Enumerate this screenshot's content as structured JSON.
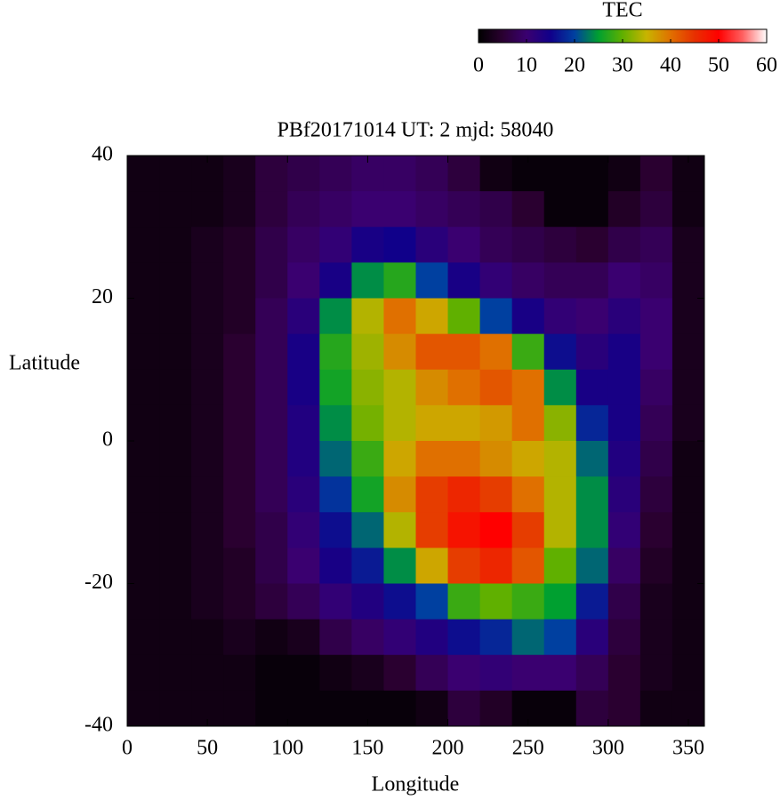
{
  "chart_data": {
    "type": "heatmap",
    "title": "PBf20171014  UT: 2  mjd: 58040",
    "xlabel": "Longitude",
    "ylabel": "Latitude",
    "colorbar_title": "TEC",
    "xlim": [
      0,
      360
    ],
    "ylim": [
      -40,
      40
    ],
    "xticks": [
      0,
      50,
      100,
      150,
      200,
      250,
      300,
      350
    ],
    "yticks": [
      -40,
      -20,
      0,
      20,
      40
    ],
    "clim": [
      0,
      60
    ],
    "cticks": [
      0,
      10,
      20,
      30,
      40,
      50,
      60
    ],
    "colorscale": [
      "#000000",
      "#2a0030",
      "#3a0070",
      "#10008a",
      "#0040a0",
      "#00a030",
      "#60b000",
      "#c8b400",
      "#e07000",
      "#e83000",
      "#ff0000",
      "#ff6060",
      "#ffffff"
    ],
    "x": [
      10,
      30,
      50,
      70,
      90,
      110,
      130,
      150,
      170,
      190,
      210,
      230,
      250,
      270,
      290,
      310,
      330,
      350
    ],
    "y": [
      37.5,
      32.5,
      27.5,
      22.5,
      17.5,
      12.5,
      7.5,
      2.5,
      -2.5,
      -7.5,
      -12.5,
      -17.5,
      -22.5,
      -27.5,
      -32.5,
      -37.5
    ],
    "z": [
      [
        2,
        2,
        2,
        3,
        6,
        7,
        8,
        9,
        9,
        8,
        6,
        2,
        1,
        1,
        1,
        2,
        5,
        2
      ],
      [
        2,
        2,
        2,
        3,
        6,
        8,
        9,
        10,
        10,
        9,
        8,
        7,
        5,
        1,
        1,
        4,
        6,
        2
      ],
      [
        2,
        2,
        3,
        4,
        7,
        9,
        11,
        14,
        15,
        12,
        10,
        8,
        7,
        6,
        5,
        7,
        8,
        3
      ],
      [
        2,
        2,
        3,
        4,
        7,
        10,
        14,
        24,
        27,
        20,
        14,
        11,
        9,
        8,
        8,
        10,
        9,
        3
      ],
      [
        2,
        2,
        3,
        4,
        8,
        12,
        24,
        34,
        40,
        36,
        30,
        20,
        14,
        11,
        10,
        12,
        10,
        3
      ],
      [
        2,
        2,
        3,
        5,
        8,
        14,
        27,
        33,
        38,
        42,
        42,
        40,
        28,
        16,
        12,
        14,
        10,
        3
      ],
      [
        2,
        2,
        3,
        5,
        8,
        14,
        26,
        32,
        34,
        38,
        40,
        42,
        40,
        24,
        14,
        14,
        9,
        3
      ],
      [
        2,
        2,
        3,
        5,
        8,
        13,
        24,
        31,
        34,
        36,
        36,
        37,
        40,
        32,
        18,
        14,
        8,
        3
      ],
      [
        2,
        2,
        3,
        5,
        8,
        13,
        22,
        28,
        36,
        40,
        40,
        38,
        36,
        34,
        22,
        13,
        7,
        2
      ],
      [
        2,
        2,
        3,
        5,
        8,
        12,
        19,
        26,
        38,
        44,
        46,
        44,
        40,
        34,
        24,
        12,
        6,
        2
      ],
      [
        2,
        2,
        3,
        5,
        7,
        11,
        16,
        22,
        34,
        44,
        48,
        50,
        44,
        34,
        24,
        11,
        5,
        2
      ],
      [
        2,
        2,
        3,
        4,
        7,
        10,
        14,
        17,
        24,
        36,
        44,
        46,
        42,
        30,
        22,
        9,
        4,
        2
      ],
      [
        2,
        2,
        3,
        4,
        6,
        8,
        11,
        13,
        16,
        20,
        28,
        30,
        28,
        25,
        17,
        7,
        3,
        2
      ],
      [
        2,
        2,
        2,
        3,
        2,
        3,
        7,
        9,
        11,
        13,
        16,
        18,
        22,
        20,
        12,
        6,
        3,
        2
      ],
      [
        2,
        2,
        2,
        2,
        1,
        1,
        2,
        3,
        5,
        8,
        10,
        11,
        10,
        10,
        8,
        5,
        3,
        2
      ],
      [
        2,
        2,
        2,
        2,
        1,
        1,
        1,
        1,
        1,
        2,
        6,
        4,
        1,
        1,
        6,
        5,
        2,
        2
      ]
    ]
  }
}
